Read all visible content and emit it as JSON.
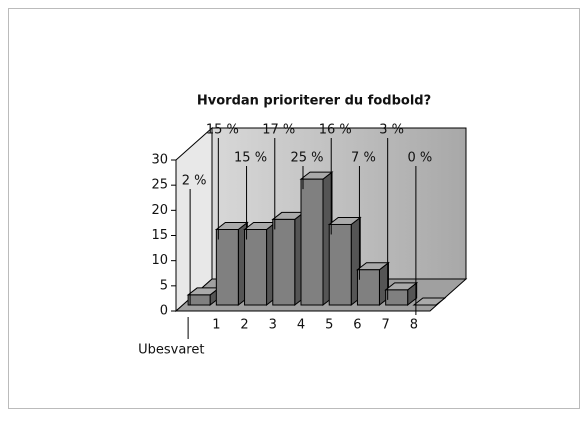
{
  "chart_data": {
    "type": "bar3d",
    "title": "Hvordan prioriterer du fodbold?",
    "categories": [
      "Ubesvaret",
      "1",
      "2",
      "3",
      "4",
      "5",
      "6",
      "7",
      "8"
    ],
    "values": [
      2,
      15,
      15,
      17,
      25,
      16,
      7,
      3,
      0
    ],
    "value_labels": [
      "2 %",
      "15 %",
      "15 %",
      "17 %",
      "25 %",
      "16 %",
      "7 %",
      "3 %",
      "0 %"
    ],
    "color": "#808080",
    "ylim": [
      0,
      30
    ],
    "yticks": [
      0,
      5,
      10,
      15,
      20,
      25,
      30
    ]
  }
}
